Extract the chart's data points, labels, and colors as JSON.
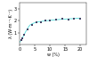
{
  "title": "",
  "xlabel": "w (%)",
  "ylabel": "λ (W·m⁻¹·K⁻¹)",
  "xlim": [
    0,
    22
  ],
  "ylim": [
    0,
    3.5
  ],
  "xticks": [
    0,
    5,
    10,
    15,
    20
  ],
  "yticks": [
    1,
    2,
    3
  ],
  "scatter_x": [
    0.5,
    1.0,
    1.5,
    2.5,
    4.0,
    5.5,
    7.0,
    8.5,
    10.0,
    12.0,
    14.0,
    16.0,
    18.0,
    20.0
  ],
  "scatter_y": [
    0.35,
    0.55,
    0.85,
    1.25,
    1.65,
    1.85,
    1.9,
    2.0,
    2.05,
    2.1,
    2.15,
    2.1,
    2.15,
    2.2
  ],
  "curve_x": [
    0.0,
    0.3,
    0.5,
    1.0,
    1.5,
    2.0,
    2.5,
    3.0,
    3.5,
    4.0,
    5.0,
    6.0,
    7.0,
    8.0,
    9.0,
    10.0,
    12.0,
    14.0,
    16.0,
    18.0,
    20.0
  ],
  "curve_y": [
    0.18,
    0.28,
    0.38,
    0.58,
    0.82,
    1.08,
    1.28,
    1.5,
    1.65,
    1.72,
    1.83,
    1.9,
    1.93,
    1.97,
    2.0,
    2.03,
    2.08,
    2.12,
    2.15,
    2.18,
    2.22
  ],
  "curve_color": "#55dddd",
  "marker_color": "#444466",
  "marker_size": 1.8,
  "background_color": "#ffffff",
  "tick_fontsize": 3.5,
  "label_fontsize": 3.5,
  "linewidth": 0.6
}
